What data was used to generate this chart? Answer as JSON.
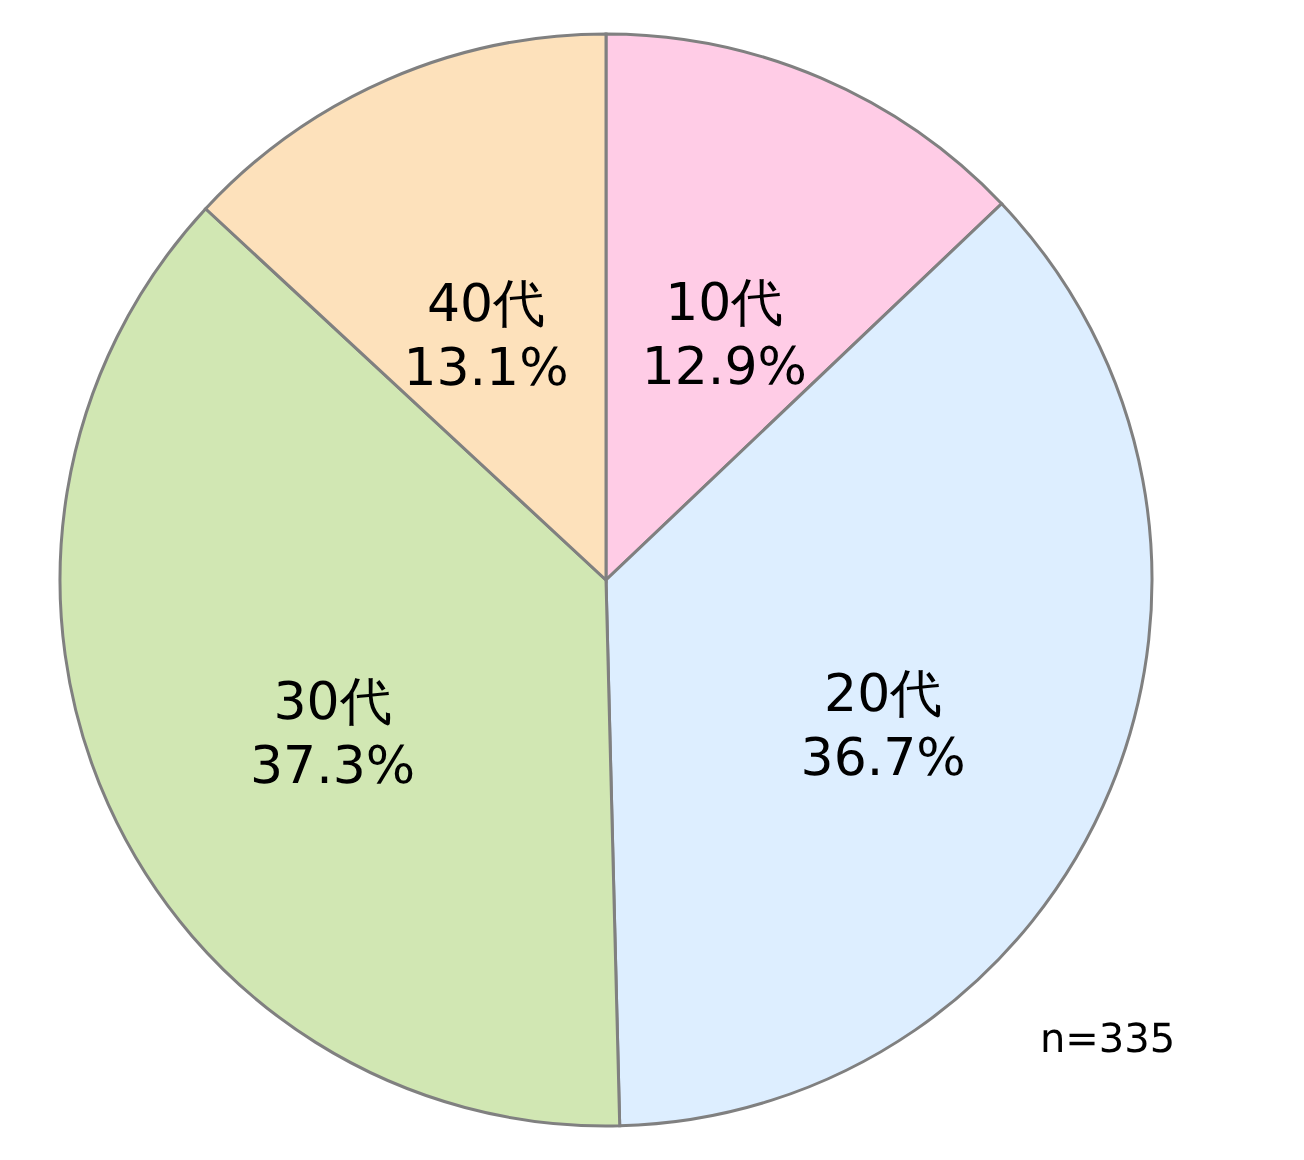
{
  "chart_data": {
    "type": "pie",
    "categories": [
      "10代",
      "20代",
      "30代",
      "40代"
    ],
    "values": [
      12.9,
      36.7,
      37.3,
      13.1
    ],
    "colors": [
      "#ffcce6",
      "#ddeeff",
      "#d1e7b3",
      "#fde1bb"
    ],
    "value_labels": [
      "12.9%",
      "36.7%",
      "37.3%",
      "13.1%"
    ],
    "annotations": [
      "n=335"
    ],
    "legend": false
  }
}
